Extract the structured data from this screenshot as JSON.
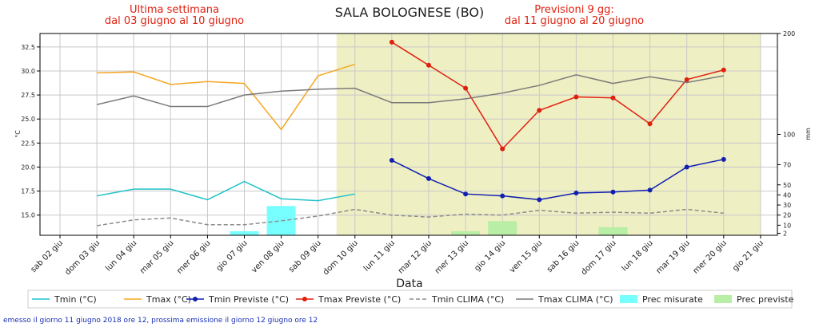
{
  "chart_data": {
    "type": "line",
    "title": "SALA BOLOGNESE (BO)",
    "annotations": [
      {
        "lines": [
          "Ultima settimana",
          "dal 03 giugno al 10 giugno"
        ]
      },
      {
        "lines": [
          "Previsioni 9 gg:",
          "dal 11 giugno al 20 giugno"
        ]
      }
    ],
    "xlabel": "Data",
    "ylabel": "°C",
    "y2label": "mm",
    "categories": [
      "sab 02 giu",
      "dom 03 giu",
      "lun 04 giu",
      "mar 05 giu",
      "mer 06 giu",
      "gio 07 giu",
      "ven 08 giu",
      "sab 09 giu",
      "dom 10 giu",
      "lun 11 giu",
      "mar 12 giu",
      "mer 13 giu",
      "gio 14 giu",
      "ven 15 giu",
      "sab 16 giu",
      "dom 17 giu",
      "lun 18 giu",
      "mar 19 giu",
      "mer 20 giu",
      "gio 21 giu"
    ],
    "series": [
      {
        "name": "Tmin (°C)",
        "color": "#1fc3c8",
        "values": [
          null,
          17.0,
          17.7,
          17.7,
          16.6,
          18.5,
          16.7,
          16.5,
          17.2,
          null,
          null,
          null,
          null,
          null,
          null,
          null,
          null,
          null,
          null,
          null
        ]
      },
      {
        "name": "Tmax (°C)",
        "color": "#f5a623",
        "values": [
          null,
          29.8,
          29.9,
          28.6,
          28.9,
          28.7,
          23.9,
          29.5,
          30.7,
          null,
          null,
          null,
          null,
          null,
          null,
          null,
          null,
          null,
          null,
          null
        ]
      },
      {
        "name": "Tmin Previste (°C)",
        "color": "#1220b0",
        "marker": "o",
        "values": [
          null,
          null,
          null,
          null,
          null,
          null,
          null,
          null,
          null,
          20.7,
          18.8,
          17.2,
          17.0,
          16.6,
          17.3,
          17.4,
          17.6,
          20.0,
          20.8,
          null
        ]
      },
      {
        "name": "Tmax Previste (°C)",
        "color": "#e0200f",
        "marker": "o",
        "values": [
          null,
          null,
          null,
          null,
          null,
          null,
          null,
          null,
          null,
          33.0,
          30.6,
          28.2,
          21.9,
          25.9,
          27.3,
          27.2,
          24.5,
          29.1,
          30.1,
          null
        ]
      },
      {
        "name": "Tmin CLIMA (°C)",
        "color": "#8c8c8c",
        "linestyle": "dashed",
        "values": [
          null,
          13.9,
          14.5,
          14.7,
          14.0,
          14.0,
          14.4,
          14.9,
          15.6,
          15.0,
          14.8,
          15.1,
          15.0,
          15.5,
          15.2,
          15.3,
          15.2,
          15.6,
          15.2,
          null
        ]
      },
      {
        "name": "Tmax CLIMA (°C)",
        "color": "#7a7a7a",
        "values": [
          null,
          26.5,
          27.4,
          26.3,
          26.3,
          27.5,
          27.9,
          28.1,
          28.2,
          26.7,
          26.7,
          27.1,
          27.7,
          28.5,
          29.6,
          28.7,
          29.4,
          28.8,
          29.5,
          null
        ]
      },
      {
        "name": "Prec misurate",
        "color": "#77ffff",
        "type": "bar",
        "axis": "y2",
        "values": [
          null,
          null,
          null,
          null,
          null,
          4,
          29,
          null,
          null,
          null,
          null,
          null,
          null,
          null,
          null,
          null,
          null,
          null,
          null,
          null
        ]
      },
      {
        "name": "Prec previste",
        "color": "#b9eea6",
        "type": "bar",
        "axis": "y2",
        "values": [
          null,
          null,
          null,
          null,
          null,
          null,
          null,
          null,
          null,
          null,
          null,
          4,
          14,
          null,
          null,
          8,
          null,
          null,
          null,
          null
        ]
      }
    ],
    "ylim": [
      12.9,
      33.9
    ],
    "yticks": [
      {
        "value": 15,
        "label": "15.0"
      },
      17.5,
      {
        "value": 20,
        "label": "20.0"
      },
      22.5,
      {
        "value": 25,
        "label": "25.0"
      },
      27.5,
      {
        "value": 30,
        "label": "30.0"
      },
      32.5
    ],
    "y2lim": [
      0,
      200
    ],
    "y2ticks": [
      2,
      10,
      20,
      30,
      40,
      50,
      70,
      100,
      200
    ],
    "grid": true,
    "legend": "bottom",
    "footer": "emesso il giorno 11 giugno 2018 ore 12, prossima emissione il giorno 12 giugno ore 12"
  }
}
